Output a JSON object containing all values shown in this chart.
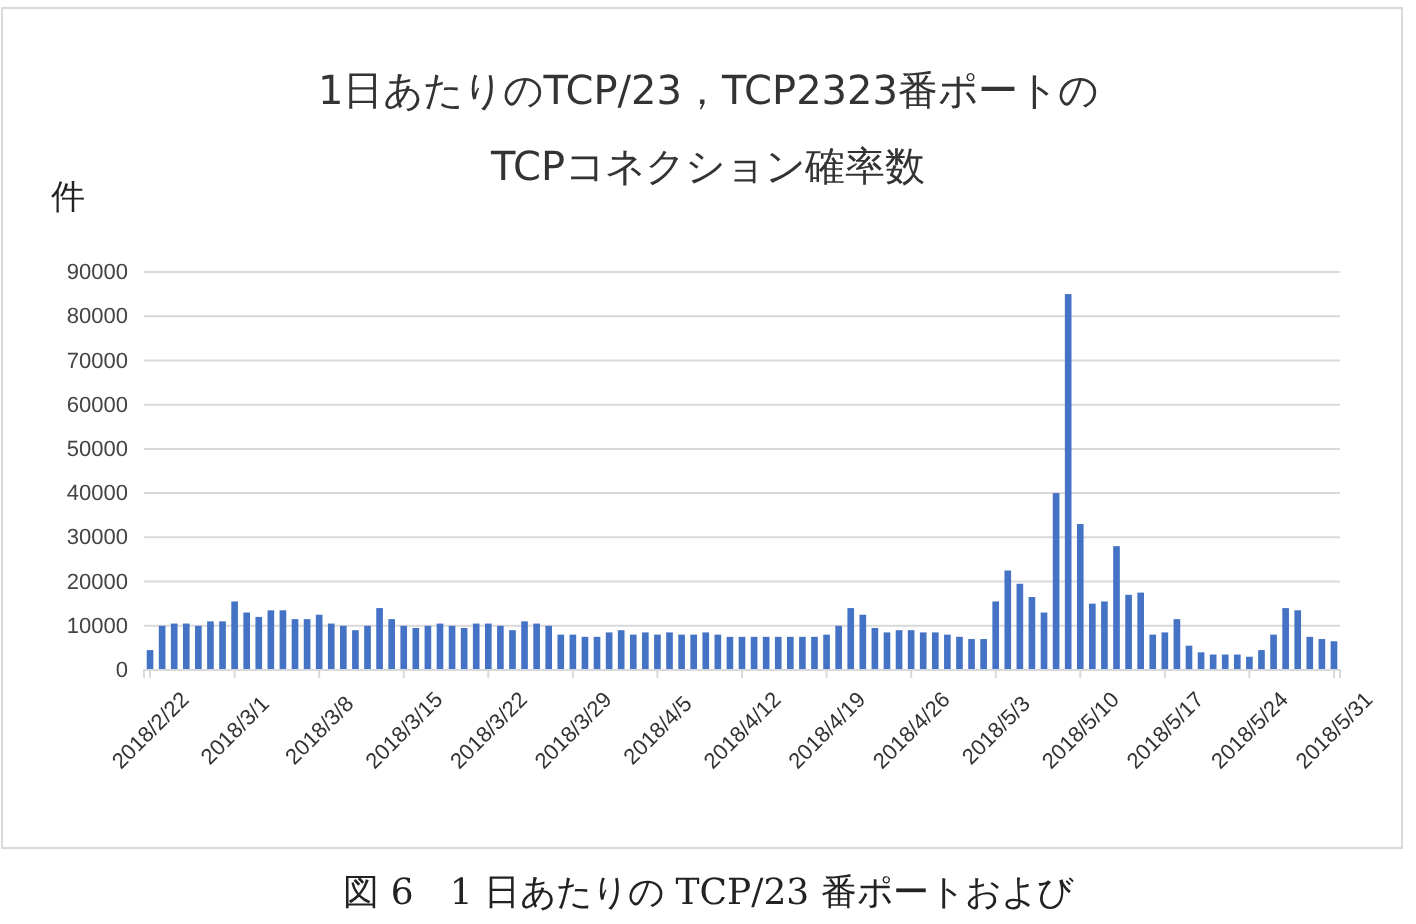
{
  "chart_data": {
    "type": "bar",
    "title": "1日あたりのTCP/23，TCP2323番ポートの\nTCPコネクション確率数",
    "ylabel": "件",
    "categories": [
      "2018/2/22",
      null,
      null,
      null,
      null,
      null,
      null,
      "2018/3/1",
      null,
      null,
      null,
      null,
      null,
      null,
      "2018/3/8",
      null,
      null,
      null,
      null,
      null,
      null,
      "2018/3/15",
      null,
      null,
      null,
      null,
      null,
      null,
      "2018/3/22",
      null,
      null,
      null,
      null,
      null,
      null,
      "2018/3/29",
      null,
      null,
      null,
      null,
      null,
      null,
      "2018/4/5",
      null,
      null,
      null,
      null,
      null,
      null,
      "2018/4/12",
      null,
      null,
      null,
      null,
      null,
      null,
      "2018/4/19",
      null,
      null,
      null,
      null,
      null,
      null,
      "2018/4/26",
      null,
      null,
      null,
      null,
      null,
      null,
      "2018/5/3",
      null,
      null,
      null,
      null,
      null,
      null,
      "2018/5/10",
      null,
      null,
      null,
      null,
      null,
      null,
      "2018/5/17",
      null,
      null,
      null,
      null,
      null,
      null,
      "2018/5/24",
      null,
      null,
      null,
      null,
      null,
      null,
      "2018/5/31"
    ],
    "values": [
      4500,
      10000,
      10500,
      10500,
      10000,
      11000,
      11000,
      15500,
      13000,
      12000,
      13500,
      13500,
      11500,
      11500,
      12500,
      10500,
      10000,
      9000,
      10000,
      14000,
      11500,
      10000,
      9500,
      10000,
      10500,
      10000,
      9500,
      10500,
      10500,
      10000,
      9000,
      11000,
      10500,
      10000,
      8000,
      8000,
      7500,
      7500,
      8500,
      9000,
      8000,
      8500,
      8000,
      8500,
      8000,
      8000,
      8500,
      8000,
      7500,
      7500,
      7500,
      7500,
      7500,
      7500,
      7500,
      7500,
      8000,
      10000,
      14000,
      12500,
      9500,
      8500,
      9000,
      9000,
      8500,
      8500,
      8000,
      7500,
      7000,
      7000,
      15500,
      22500,
      19500,
      16500,
      13000,
      40000,
      85000,
      33000,
      15000,
      15500,
      28000,
      17000,
      17500,
      8000,
      8500,
      11500,
      5500,
      4000,
      3500,
      3500,
      3500,
      3000,
      4500,
      8000,
      14000,
      13500,
      7500,
      7000,
      6500
    ],
    "color": "#4472c4",
    "ylim": [
      0,
      90000
    ],
    "yticks": [
      0,
      10000,
      20000,
      30000,
      40000,
      50000,
      60000,
      70000,
      80000,
      90000
    ],
    "grid": "y",
    "annotations": [
      "図 6　1 日あたりの TCP/23 番ポートおよび"
    ]
  }
}
